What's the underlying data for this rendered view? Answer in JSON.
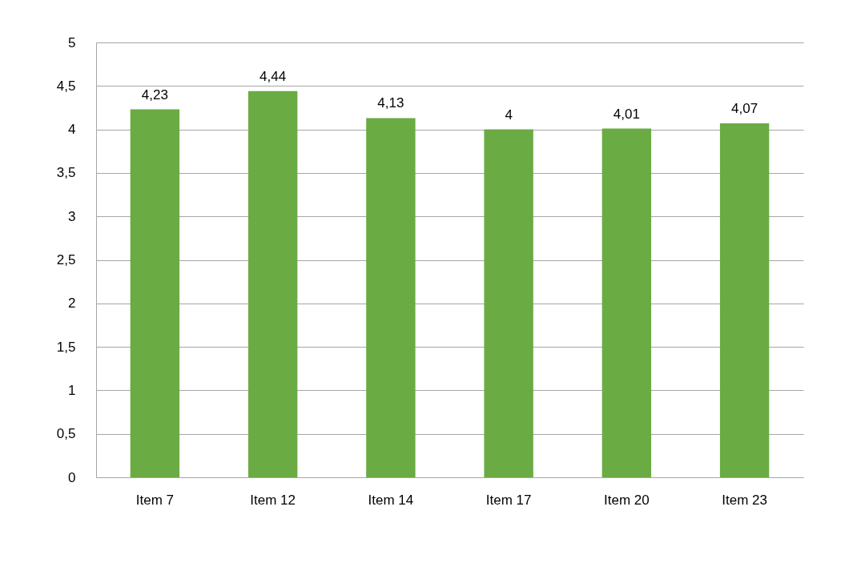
{
  "chart_data": {
    "type": "bar",
    "categories": [
      "Item 7",
      "Item 12",
      "Item 14",
      "Item 17",
      "Item 20",
      "Item 23"
    ],
    "values": [
      4.23,
      4.44,
      4.13,
      4,
      4.01,
      4.07
    ],
    "value_labels": [
      "4,23",
      "4,44",
      "4,13",
      "4",
      "4,01",
      "4,07"
    ],
    "color": "#6aab44",
    "ylim": [
      0,
      5
    ],
    "yticks": [
      0,
      {
        "value": 0.5,
        "label": "0,5"
      },
      1,
      {
        "value": 1.5,
        "label": "1,5"
      },
      2,
      {
        "value": 2.5,
        "label": "2,5"
      },
      3,
      {
        "value": 3.5,
        "label": "3,5"
      },
      4,
      {
        "value": 4.5,
        "label": "4,5"
      },
      5
    ],
    "grid": "y"
  }
}
